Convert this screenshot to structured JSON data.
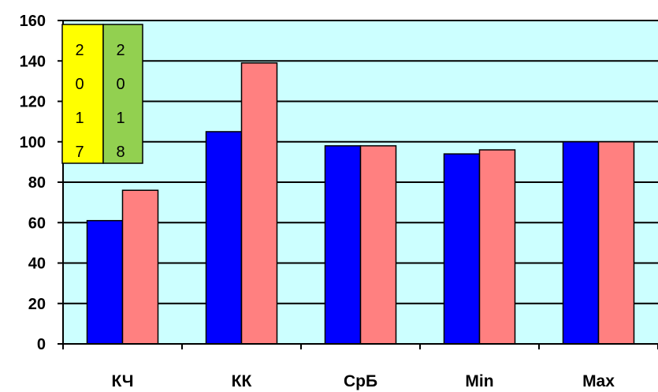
{
  "chart_data": {
    "type": "bar",
    "categories": [
      "КЧ",
      "КК",
      "СрБ",
      "Min",
      "Max"
    ],
    "series": [
      {
        "name": "2017",
        "values": [
          61,
          105,
          98,
          94,
          100
        ],
        "color": "#0000ff"
      },
      {
        "name": "2018",
        "values": [
          76,
          139,
          98,
          96,
          100
        ],
        "color": "#ff8080"
      }
    ],
    "ylim": [
      0,
      160
    ],
    "yticks": [
      0,
      20,
      40,
      60,
      80,
      100,
      120,
      140,
      160
    ],
    "grid": true,
    "plot_background": "#ccffff",
    "legend": {
      "placement": "top-left",
      "items": [
        {
          "text": "2017",
          "color": "#ffff00"
        },
        {
          "text": "2018",
          "color": "#92d050"
        }
      ]
    }
  }
}
